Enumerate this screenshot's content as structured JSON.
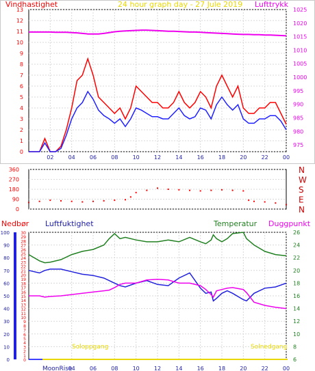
{
  "header": {
    "left_label": "Vindhastighet",
    "title": "24 hour graph day - 27 Jule 2019",
    "right_label": "Lufttrykk"
  },
  "chart_data": [
    {
      "type": "line",
      "title": "24 hour graph day - 27 Jule 2019",
      "ylabel": "Vindhastighet",
      "y2label": "Lufttrykk",
      "x_ticks": [
        "02",
        "04",
        "06",
        "08",
        "10",
        "12",
        "14",
        "16",
        "18",
        "20",
        "22",
        "00"
      ],
      "ylim": [
        0,
        13
      ],
      "y_ticks": [
        0,
        1,
        2,
        3,
        4,
        5,
        6,
        7,
        8,
        9,
        10,
        11,
        12,
        13
      ],
      "y2lim": [
        972.5,
        1025
      ],
      "y2_ticks": [
        975,
        980,
        985,
        990,
        995,
        1000,
        1005,
        1010,
        1015,
        1020,
        1025
      ],
      "grid": true,
      "x_hours": [
        0,
        1,
        1.5,
        2,
        2.5,
        3,
        3.5,
        4,
        4.5,
        5,
        5.5,
        6,
        6.5,
        7,
        7.5,
        8,
        8.5,
        9,
        9.5,
        10,
        10.5,
        11,
        11.5,
        12,
        12.5,
        13,
        13.5,
        14,
        14.5,
        15,
        15.5,
        16,
        16.5,
        17,
        17.5,
        18,
        18.5,
        19,
        19.5,
        20,
        20.5,
        21,
        21.5,
        22,
        22.5,
        23,
        23.5,
        24
      ],
      "series": [
        {
          "key": "gust",
          "color": "#ff0000",
          "values": [
            0,
            0,
            1.2,
            0,
            0,
            0.5,
            2,
            4,
            6.5,
            7,
            8.5,
            7,
            5,
            4.5,
            4,
            3.5,
            4,
            3,
            4,
            6,
            5.5,
            5,
            4.5,
            4.5,
            4,
            4,
            4.5,
            5.5,
            4.5,
            4,
            4.5,
            5.5,
            5,
            4,
            6,
            7,
            6,
            5,
            6,
            4,
            3.5,
            3.5,
            4,
            4,
            4.5,
            4.5,
            3.5,
            2.5
          ]
        },
        {
          "key": "mean_wind",
          "color": "#2020ff",
          "values": [
            0,
            0,
            0.8,
            0,
            0,
            0.3,
            1.5,
            3,
            4,
            4.5,
            5.5,
            4.8,
            3.8,
            3.3,
            3,
            2.6,
            3,
            2.3,
            3,
            4,
            3.8,
            3.5,
            3.2,
            3.2,
            3,
            3,
            3.5,
            4,
            3.3,
            3,
            3.2,
            4,
            3.8,
            3,
            4.3,
            5,
            4.3,
            3.8,
            4.3,
            3,
            2.6,
            2.6,
            3,
            3,
            3.3,
            3.3,
            2.8,
            2
          ]
        },
        {
          "key": "pressure",
          "color": "#ee00ee",
          "values": [
            1016.7,
            1016.7,
            1016.7,
            1016.7,
            1016.6,
            1016.6,
            1016.6,
            1016.5,
            1016.4,
            1016.2,
            1016,
            1016,
            1016,
            1016.2,
            1016.5,
            1016.8,
            1017,
            1017.1,
            1017.2,
            1017.3,
            1017.4,
            1017.4,
            1017.3,
            1017.2,
            1017.1,
            1017,
            1017,
            1016.9,
            1016.8,
            1016.7,
            1016.7,
            1016.6,
            1016.5,
            1016.4,
            1016.3,
            1016.2,
            1016.1,
            1016,
            1015.9,
            1015.8,
            1015.8,
            1015.7,
            1015.7,
            1015.6,
            1015.6,
            1015.5,
            1015.4,
            1015.3
          ]
        }
      ]
    },
    {
      "type": "scatter",
      "y_ticks": [
        0,
        90,
        180,
        270,
        360
      ],
      "ylim": [
        0,
        360
      ],
      "direction_labels": [
        "N",
        "W",
        "S",
        "E",
        "N"
      ],
      "x_hours": [
        0,
        1,
        2,
        3,
        4,
        5,
        6,
        7,
        8,
        9,
        9.5,
        10,
        11,
        12,
        13,
        14,
        15,
        16,
        17,
        18,
        19,
        20,
        20.5,
        21,
        22,
        23,
        24
      ],
      "series": [
        {
          "key": "wind_direction",
          "color": "#ff0000",
          "values": [
            60,
            70,
            80,
            75,
            70,
            65,
            70,
            75,
            80,
            85,
            110,
            150,
            170,
            190,
            180,
            175,
            170,
            165,
            170,
            175,
            170,
            165,
            80,
            70,
            65,
            55,
            40
          ]
        }
      ]
    },
    {
      "type": "line",
      "x_ticks": [
        "04",
        "06",
        "08",
        "10",
        "12",
        "14",
        "16",
        "18",
        "20",
        "22",
        "00"
      ],
      "y_rain_ticks": [
        0,
        1,
        2,
        3,
        4,
        5,
        6,
        7,
        8,
        9,
        10,
        11,
        12,
        13,
        14,
        15,
        16,
        17,
        18,
        19,
        20,
        21,
        22,
        23,
        24,
        25,
        26,
        27,
        28,
        29,
        30
      ],
      "y_rain_lim": [
        0,
        30
      ],
      "y_hum_ticks": [
        0,
        10,
        20,
        30,
        40,
        50,
        60,
        70,
        80,
        90,
        100
      ],
      "y_hum_lim": [
        0,
        100
      ],
      "y_temp_ticks": [
        6,
        8,
        10,
        12,
        14,
        16,
        18,
        20,
        22,
        24,
        26
      ],
      "y_temp_lim": [
        6,
        26
      ],
      "grid": true,
      "labels": {
        "rain": "Nedbør",
        "humidity": "Luftfuktighet",
        "temperature": "Temperatur",
        "dewpoint": "Duggpunkt",
        "sunrise": "Soloppgang",
        "sunset": "Solnedgang",
        "moon": "MoonRise"
      },
      "x_hours": [
        0,
        1,
        1.5,
        2,
        3,
        4,
        5,
        6,
        7,
        7.5,
        8,
        8.5,
        9,
        10,
        11,
        12,
        13,
        14,
        15,
        16,
        16.5,
        17,
        17.2,
        17.5,
        18,
        18.5,
        19,
        20,
        20.3,
        21,
        22,
        23,
        24
      ],
      "series": [
        {
          "key": "temperature",
          "color": "#208020",
          "values": [
            22.5,
            21.5,
            21.2,
            21.3,
            21.7,
            22.5,
            23,
            23.3,
            24,
            25,
            25.8,
            25,
            25.2,
            24.8,
            24.5,
            24.5,
            24.8,
            24.5,
            25.2,
            24.5,
            24.2,
            24.8,
            25.6,
            25,
            24.5,
            25,
            25.8,
            26,
            25,
            24,
            23,
            22.5,
            22.3
          ]
        },
        {
          "key": "humidity",
          "color": "#2020dd",
          "values": [
            70,
            68,
            70,
            71,
            71,
            69,
            67,
            66,
            64,
            62,
            60,
            58,
            57,
            60,
            62,
            59,
            58,
            64,
            68,
            56,
            52,
            53,
            46,
            48,
            52,
            54,
            52,
            47,
            46,
            52,
            56,
            57,
            60
          ]
        },
        {
          "key": "dewpoint",
          "color": "#ee00ee",
          "values": [
            16,
            16,
            15.8,
            15.9,
            16,
            16.2,
            16.4,
            16.6,
            16.8,
            16.9,
            17.3,
            17.8,
            18,
            18,
            18.5,
            18.6,
            18.5,
            18,
            18,
            17.6,
            17,
            16.2,
            15.8,
            16.8,
            17,
            17.2,
            17.3,
            17,
            16.5,
            15,
            14.5,
            14.2,
            14
          ]
        },
        {
          "key": "rain",
          "color": "#0000ff",
          "values": [
            0,
            0,
            0,
            0,
            0,
            0,
            0,
            0,
            0,
            0,
            0,
            0,
            0,
            0,
            0,
            0,
            0,
            0,
            0,
            0,
            0,
            0,
            0,
            0,
            0,
            0,
            0,
            0,
            0,
            0,
            0,
            0,
            0
          ]
        }
      ]
    }
  ]
}
